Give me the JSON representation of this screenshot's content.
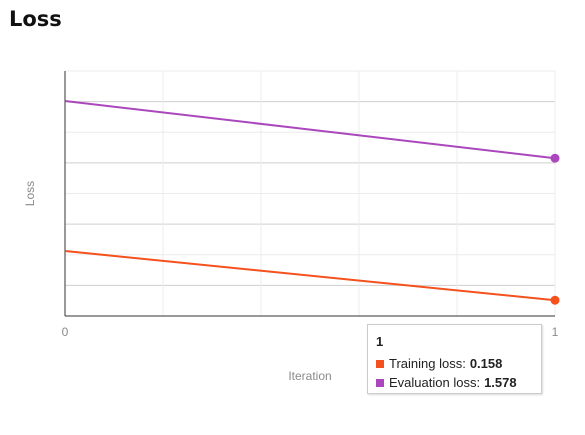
{
  "title": "Loss",
  "colors": {
    "training": "#f4511e",
    "evaluation": "#ab47bc",
    "grid": "#cccccc",
    "axis": "#333333",
    "label": "#8a8a8a"
  },
  "chart_data": {
    "type": "line",
    "title": "Loss",
    "xlabel": "Iteration",
    "ylabel": "Loss",
    "x": [
      0,
      1
    ],
    "x_tick_labels": [
      "0",
      "1"
    ],
    "grid": true,
    "series": [
      {
        "name": "Training loss",
        "color": "#f4511e",
        "values": [
          0.65,
          0.158
        ]
      },
      {
        "name": "Evaluation loss",
        "color": "#ab47bc",
        "values": [
          2.15,
          1.578
        ]
      }
    ]
  },
  "tooltip": {
    "title": "1",
    "rows": [
      {
        "label": "Training loss:",
        "value": "0.158"
      },
      {
        "label": "Evaluation loss:",
        "value": "1.578"
      }
    ]
  }
}
